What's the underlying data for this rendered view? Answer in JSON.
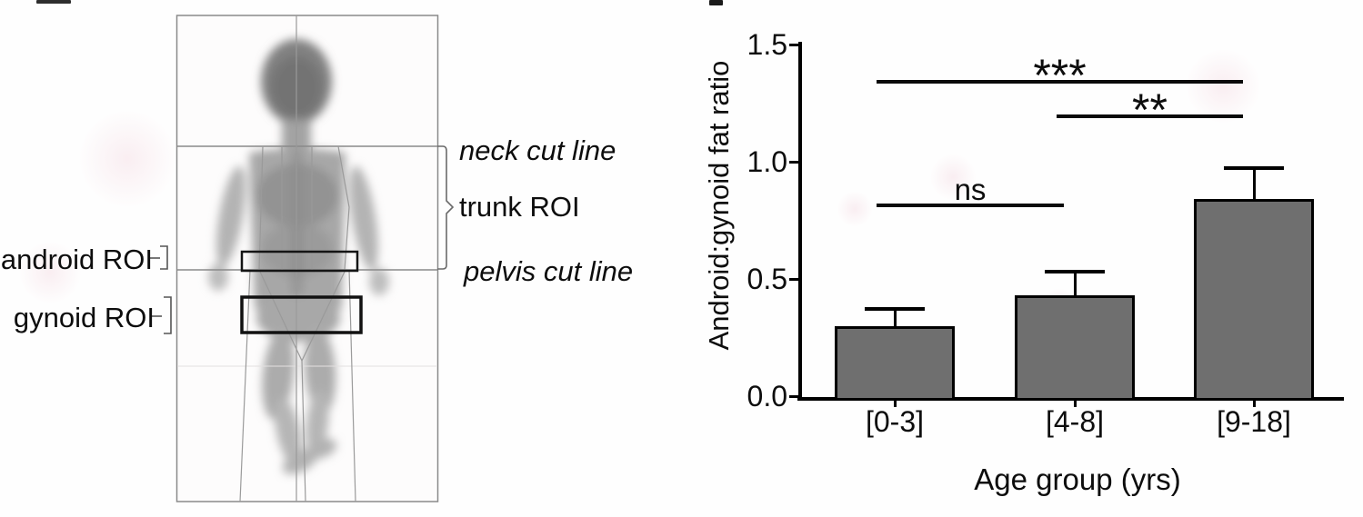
{
  "scan": {
    "labels": {
      "neck_cut_line": "neck cut line",
      "trunk_roi": "trunk ROI",
      "pelvis_cut_line": "pelvis cut line",
      "android_roi": "android ROI",
      "gynoid_roi": "gynoid ROI"
    },
    "colors": {
      "scan_line": "#9a9a9a",
      "roi_box": "#111111",
      "scan_border": "#8a8a8a"
    }
  },
  "chart_data": {
    "type": "bar",
    "title": "",
    "xlabel": "Age group (yrs)",
    "ylabel": "Android:gynoid fat ratio",
    "categories": [
      "[0-3]",
      "[4-8]",
      "[9-18]"
    ],
    "values": [
      0.3,
      0.43,
      0.84
    ],
    "error_up": [
      0.08,
      0.11,
      0.14
    ],
    "ylim": [
      0.0,
      1.5
    ],
    "yticks": [
      0.0,
      0.5,
      1.0,
      1.5
    ],
    "ytick_labels": [
      "0.0",
      "0.5",
      "1.0",
      "1.5"
    ],
    "grid": false,
    "legend": "none",
    "bar_color": "#6f6f6f",
    "bar_border": "#000000",
    "significance": [
      {
        "label": "***",
        "between": [
          "[0-3]",
          "[9-18]"
        ],
        "y": 1.35
      },
      {
        "label": "**",
        "between": [
          "[4-8]",
          "[9-18]"
        ],
        "y": 1.2
      },
      {
        "label": "ns",
        "between": [
          "[0-3]",
          "[4-8]"
        ],
        "y": 0.82
      }
    ]
  }
}
